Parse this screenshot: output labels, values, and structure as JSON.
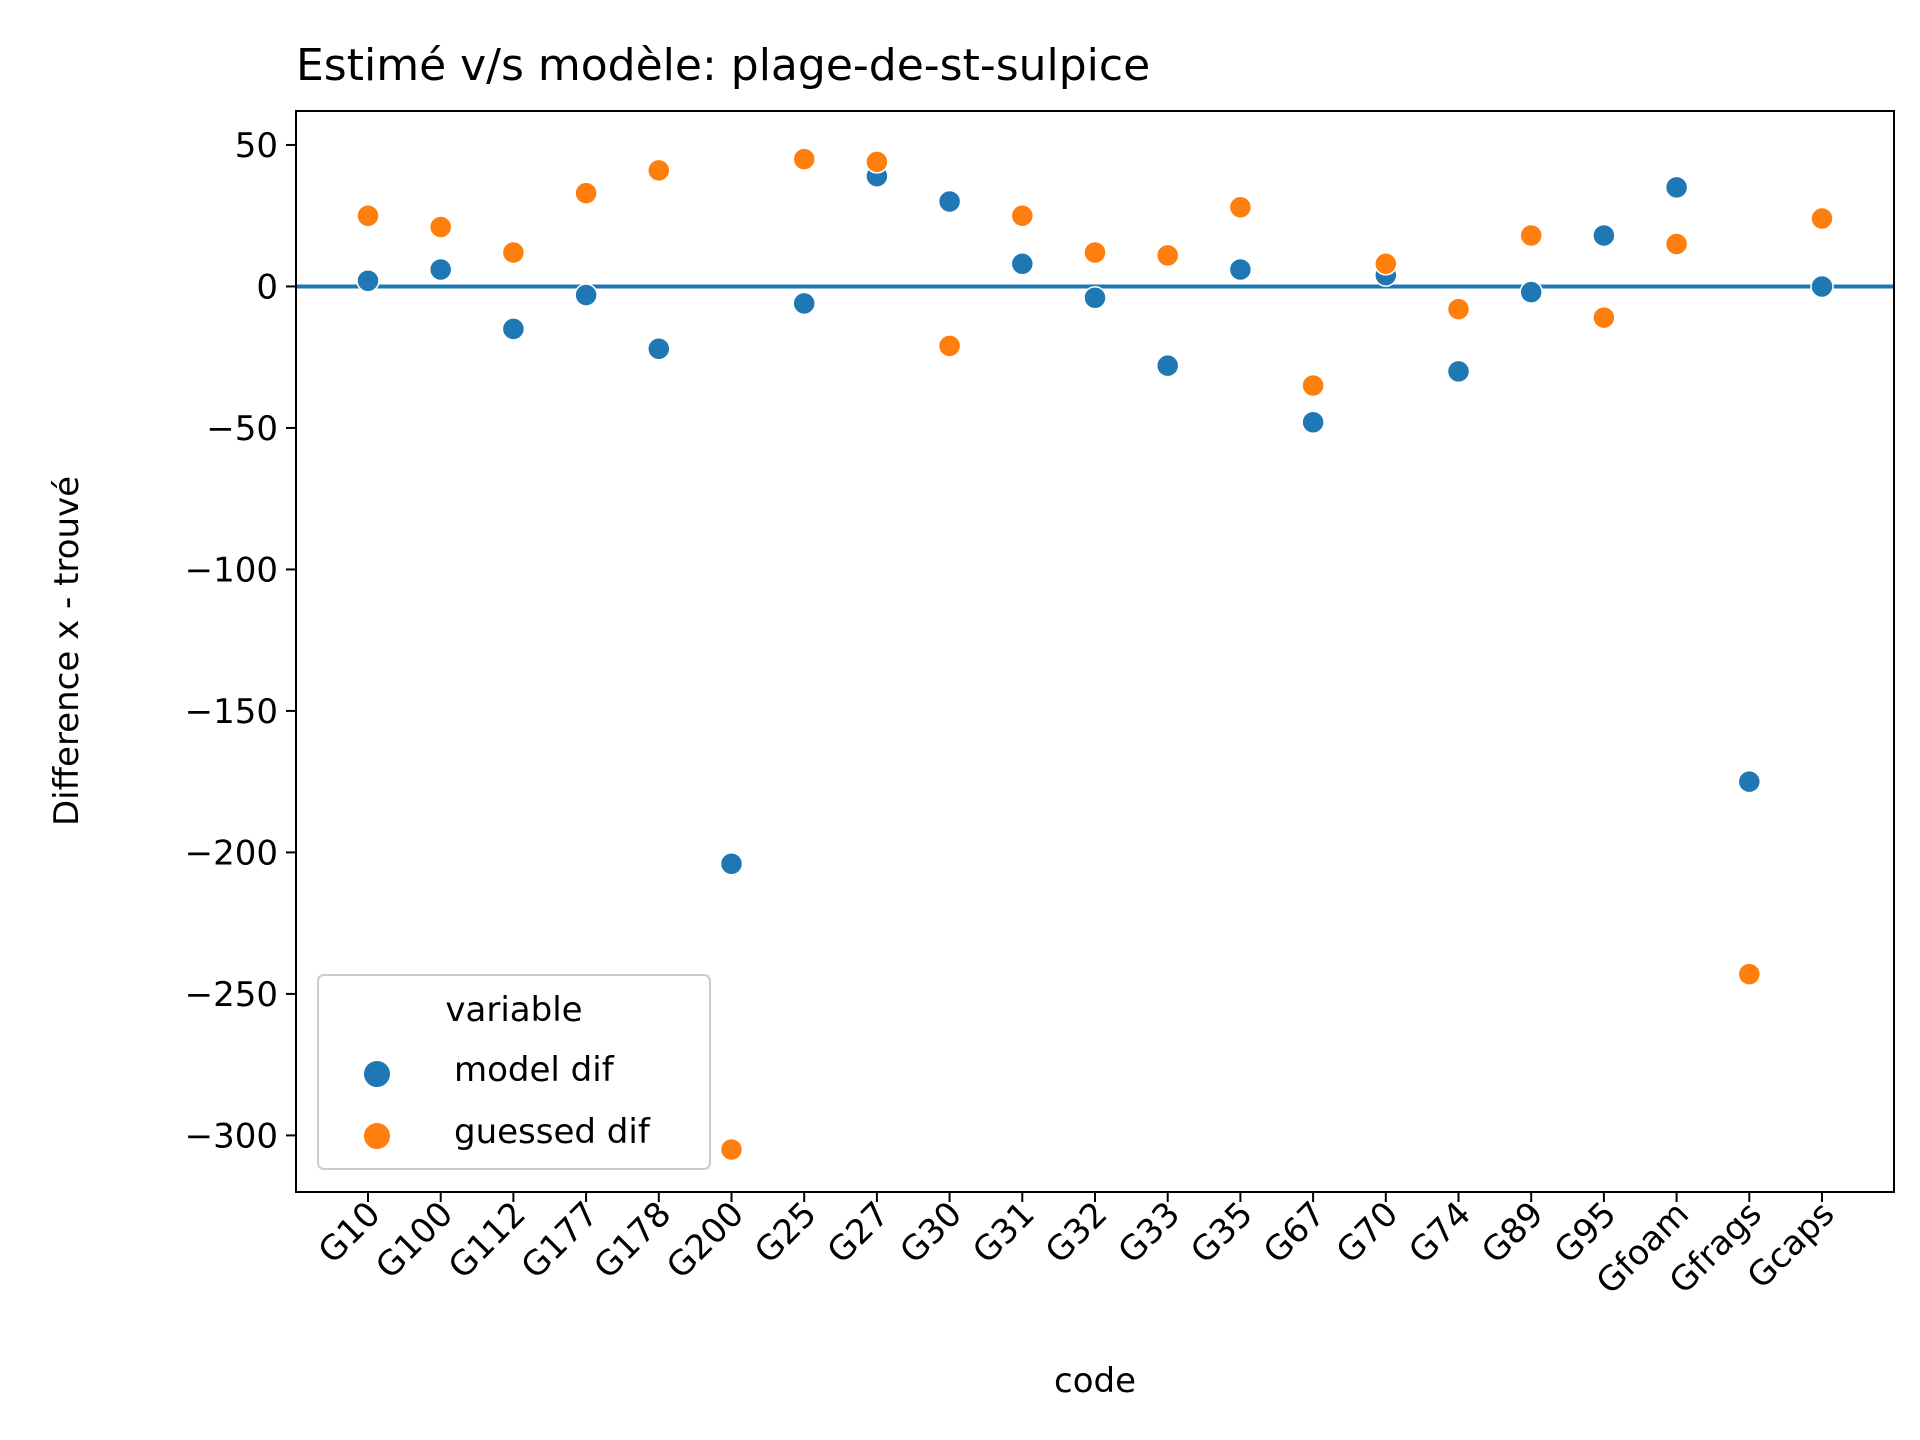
{
  "chart_data": {
    "type": "scatter",
    "title": "Estimé v/s modèle: plage-de-st-sulpice",
    "xlabel": "code",
    "ylabel": "Difference x - trouvé",
    "categories": [
      "G10",
      "G100",
      "G112",
      "G177",
      "G178",
      "G200",
      "G25",
      "G27",
      "G30",
      "G31",
      "G32",
      "G33",
      "G35",
      "G67",
      "G70",
      "G74",
      "G89",
      "G95",
      "Gfoam",
      "Gfrags",
      "Gcaps"
    ],
    "ylim": [
      -320,
      62
    ],
    "yticks": [
      50,
      0,
      -50,
      -100,
      -150,
      -200,
      -250,
      -300
    ],
    "ytick_labels": [
      "50",
      "0",
      "−50",
      "−100",
      "−150",
      "−200",
      "−250",
      "−300"
    ],
    "reference_line": 0,
    "grid": false,
    "legend": {
      "title": "variable",
      "placement": "lower-left"
    },
    "series": [
      {
        "name": "model dif",
        "color": "#1f77b4",
        "values": [
          2,
          6,
          -15,
          -3,
          -22,
          -204,
          -6,
          39,
          30,
          8,
          -4,
          -28,
          6,
          -48,
          4,
          -30,
          -2,
          18,
          35,
          -175,
          0
        ]
      },
      {
        "name": "guessed dif",
        "color": "#ff7f0e",
        "values": [
          25,
          21,
          12,
          33,
          41,
          -305,
          45,
          44,
          -21,
          25,
          12,
          11,
          28,
          -35,
          8,
          -8,
          18,
          -11,
          15,
          -243,
          24
        ]
      }
    ]
  }
}
